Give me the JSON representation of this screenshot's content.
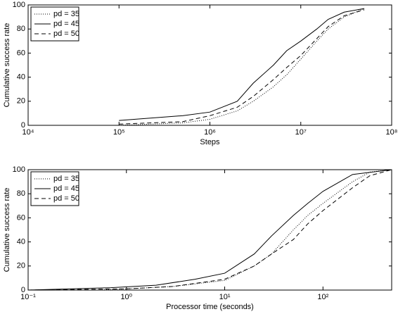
{
  "chart_data": [
    {
      "type": "line",
      "xlabel": "Steps",
      "ylabel": "Cumulative success rate",
      "xlog": true,
      "xlim": [
        10000,
        100000000
      ],
      "ylim": [
        0,
        100
      ],
      "xticks": [
        {
          "value": 10000,
          "label": "10⁴"
        },
        {
          "value": 100000,
          "label": "10⁵"
        },
        {
          "value": 1000000,
          "label": "10⁶"
        },
        {
          "value": 10000000,
          "label": "10⁷"
        },
        {
          "value": 100000000,
          "label": "10⁸"
        }
      ],
      "yticks": [
        0,
        20,
        40,
        60,
        80,
        100
      ],
      "legend": "upper left",
      "series": [
        {
          "name": "pd = 35",
          "color": "#000000",
          "dash": "dotted",
          "x": [
            100000,
            500000,
            1000000,
            2000000,
            3000000,
            5000000,
            7000000,
            10000000,
            15000000,
            20000000,
            30000000,
            50000000
          ],
          "values": [
            0,
            2,
            5,
            12,
            20,
            32,
            42,
            55,
            70,
            80,
            90,
            97
          ]
        },
        {
          "name": "pd = 45",
          "color": "#000000",
          "dash": "solid",
          "x": [
            100000,
            500000,
            1000000,
            2000000,
            3000000,
            5000000,
            7000000,
            10000000,
            15000000,
            20000000,
            30000000,
            50000000
          ],
          "values": [
            4,
            8,
            11,
            20,
            35,
            50,
            62,
            70,
            80,
            88,
            94,
            97
          ]
        },
        {
          "name": "pd = 50",
          "color": "#000000",
          "dash": "dashed",
          "x": [
            100000,
            500000,
            1000000,
            2000000,
            3000000,
            5000000,
            7000000,
            10000000,
            15000000,
            20000000,
            30000000,
            50000000
          ],
          "values": [
            1,
            3,
            8,
            15,
            24,
            38,
            48,
            58,
            72,
            82,
            91,
            96
          ]
        }
      ]
    },
    {
      "type": "line",
      "xlabel": "Processor time (seconds)",
      "ylabel": "Cumulative success rate",
      "xlog": true,
      "xlim": [
        0.1,
        500
      ],
      "ylim": [
        0,
        100
      ],
      "xticks": [
        {
          "value": 0.1,
          "label": "10⁻¹"
        },
        {
          "value": 1,
          "label": "10⁰"
        },
        {
          "value": 10,
          "label": "10¹"
        },
        {
          "value": 100,
          "label": "10²"
        }
      ],
      "yticks": [
        0,
        20,
        40,
        60,
        80,
        100
      ],
      "legend": "upper left",
      "series": [
        {
          "name": "pd = 35",
          "color": "#000000",
          "dash": "dotted",
          "x": [
            0.1,
            0.5,
            1,
            3,
            10,
            20,
            30,
            50,
            70,
            100,
            200,
            300,
            500
          ],
          "values": [
            0,
            0,
            1,
            3,
            8,
            20,
            30,
            50,
            62,
            72,
            90,
            98,
            100
          ]
        },
        {
          "name": "pd = 45",
          "color": "#000000",
          "dash": "solid",
          "x": [
            0.1,
            0.7,
            2,
            5,
            10,
            20,
            30,
            50,
            70,
            100,
            200,
            500
          ],
          "values": [
            0,
            2,
            4,
            9,
            14,
            30,
            45,
            62,
            72,
            82,
            96,
            100
          ]
        },
        {
          "name": "pd = 50",
          "color": "#000000",
          "dash": "dashed",
          "x": [
            0.1,
            1,
            3,
            10,
            20,
            30,
            50,
            70,
            100,
            200,
            300,
            500
          ],
          "values": [
            0,
            1,
            3,
            9,
            20,
            30,
            42,
            55,
            66,
            85,
            95,
            100
          ]
        }
      ]
    }
  ]
}
